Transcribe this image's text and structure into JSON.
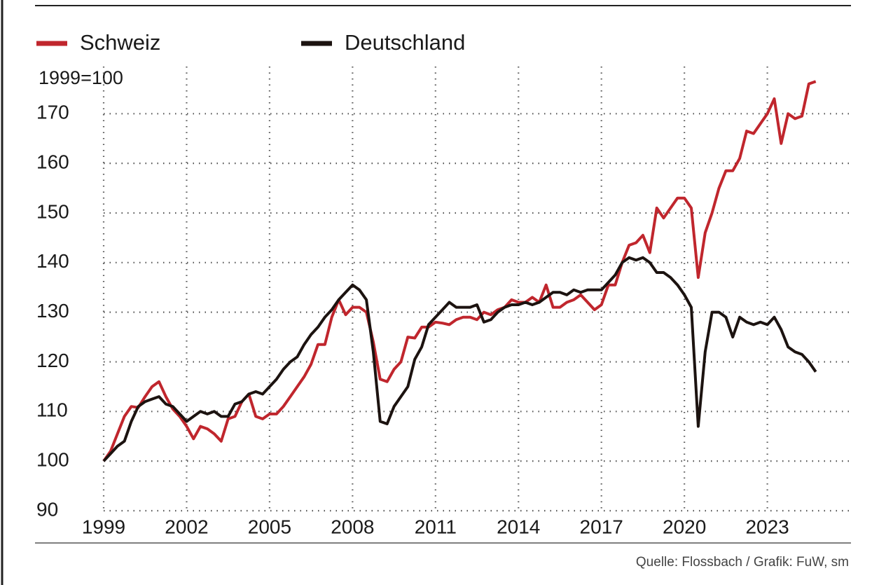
{
  "chart_data": {
    "type": "line",
    "y_label": "1999=100",
    "source": "Quelle: Flossbach / Grafik: FuW, sm",
    "x": [
      1999,
      1999.25,
      1999.5,
      1999.75,
      2000,
      2000.25,
      2000.5,
      2000.75,
      2001,
      2001.25,
      2001.5,
      2001.75,
      2002,
      2002.25,
      2002.5,
      2002.75,
      2003,
      2003.25,
      2003.5,
      2003.75,
      2004,
      2004.25,
      2004.5,
      2004.75,
      2005,
      2005.25,
      2005.5,
      2005.75,
      2006,
      2006.25,
      2006.5,
      2006.75,
      2007,
      2007.25,
      2007.5,
      2007.75,
      2008,
      2008.25,
      2008.5,
      2008.75,
      2009,
      2009.25,
      2009.5,
      2009.75,
      2010,
      2010.25,
      2010.5,
      2010.75,
      2011,
      2011.25,
      2011.5,
      2011.75,
      2012,
      2012.25,
      2012.5,
      2012.75,
      2013,
      2013.25,
      2013.5,
      2013.75,
      2014,
      2014.25,
      2014.5,
      2014.75,
      2015,
      2015.25,
      2015.5,
      2015.75,
      2016,
      2016.25,
      2016.5,
      2016.75,
      2017,
      2017.25,
      2017.5,
      2017.75,
      2018,
      2018.25,
      2018.5,
      2018.75,
      2019,
      2019.25,
      2019.5,
      2019.75,
      2020,
      2020.25,
      2020.5,
      2020.75,
      2021,
      2021.25,
      2021.5,
      2021.75,
      2022,
      2022.25,
      2022.5,
      2022.75,
      2023,
      2023.25,
      2023.5,
      2023.75,
      2024,
      2024.25,
      2024.5,
      2024.75
    ],
    "series": [
      {
        "name": "Schweiz",
        "color": "#c0262d",
        "values": [
          100,
          102,
          105.5,
          109,
          111,
          110.8,
          113,
          115,
          116,
          113,
          110.5,
          109,
          107,
          104.5,
          107,
          106.5,
          105.5,
          104,
          108.5,
          109,
          112,
          113.5,
          109,
          108.5,
          109.5,
          109.5,
          111,
          113,
          115,
          117,
          119.5,
          123.5,
          123.5,
          129,
          132.5,
          129.5,
          131,
          131,
          130,
          124,
          116.5,
          116,
          118.5,
          120,
          125,
          124.8,
          127,
          127,
          128,
          127.8,
          127.5,
          128.5,
          129,
          129,
          128.5,
          130,
          129.5,
          130.5,
          131,
          132.5,
          132,
          132,
          133,
          132,
          135.5,
          131,
          131,
          132,
          132.5,
          133.5,
          132,
          130.5,
          131.5,
          135.5,
          135.5,
          140,
          143.5,
          144,
          145.5,
          142,
          151,
          149,
          151,
          153,
          153,
          151,
          137,
          146,
          150,
          155,
          158.5,
          158.5,
          161,
          166.5,
          166,
          168,
          170,
          173,
          164,
          170,
          169,
          169.5,
          176,
          176.5
        ]
      },
      {
        "name": "Deutschland",
        "color": "#1c1310",
        "values": [
          100,
          101.5,
          103,
          104,
          108,
          111,
          112,
          112.5,
          113,
          111.5,
          111,
          109.5,
          108,
          109,
          110,
          109.5,
          110,
          109,
          109,
          111.5,
          112,
          113.5,
          114,
          113.5,
          115,
          116.5,
          118.5,
          120,
          121,
          123.5,
          125.5,
          127,
          129,
          130.5,
          132.5,
          134,
          135.5,
          134.5,
          132.5,
          122,
          108,
          107.5,
          111,
          113,
          115,
          120.5,
          123,
          127.5,
          129,
          130.5,
          132,
          131,
          131,
          131,
          131.5,
          128,
          128.5,
          130,
          131,
          131.5,
          131.5,
          132,
          131.5,
          132,
          133,
          134,
          134,
          133.5,
          134.5,
          134,
          134.5,
          134.5,
          134.5,
          136,
          137.5,
          140,
          141,
          140.5,
          141,
          140,
          138,
          138,
          137,
          135.5,
          133.5,
          131,
          107,
          122,
          130,
          130,
          129,
          125,
          129,
          128,
          127.5,
          128,
          127.5,
          129,
          126.5,
          123,
          122,
          121.5,
          120,
          118
        ]
      }
    ],
    "xlim": [
      1999,
      2026.1
    ],
    "xticks": [
      1999,
      2002,
      2005,
      2008,
      2011,
      2014,
      2017,
      2020,
      2023
    ],
    "ylim": [
      90,
      179.5
    ],
    "yticks": [
      90,
      100,
      110,
      120,
      130,
      140,
      150,
      160,
      170
    ],
    "grid": true
  }
}
